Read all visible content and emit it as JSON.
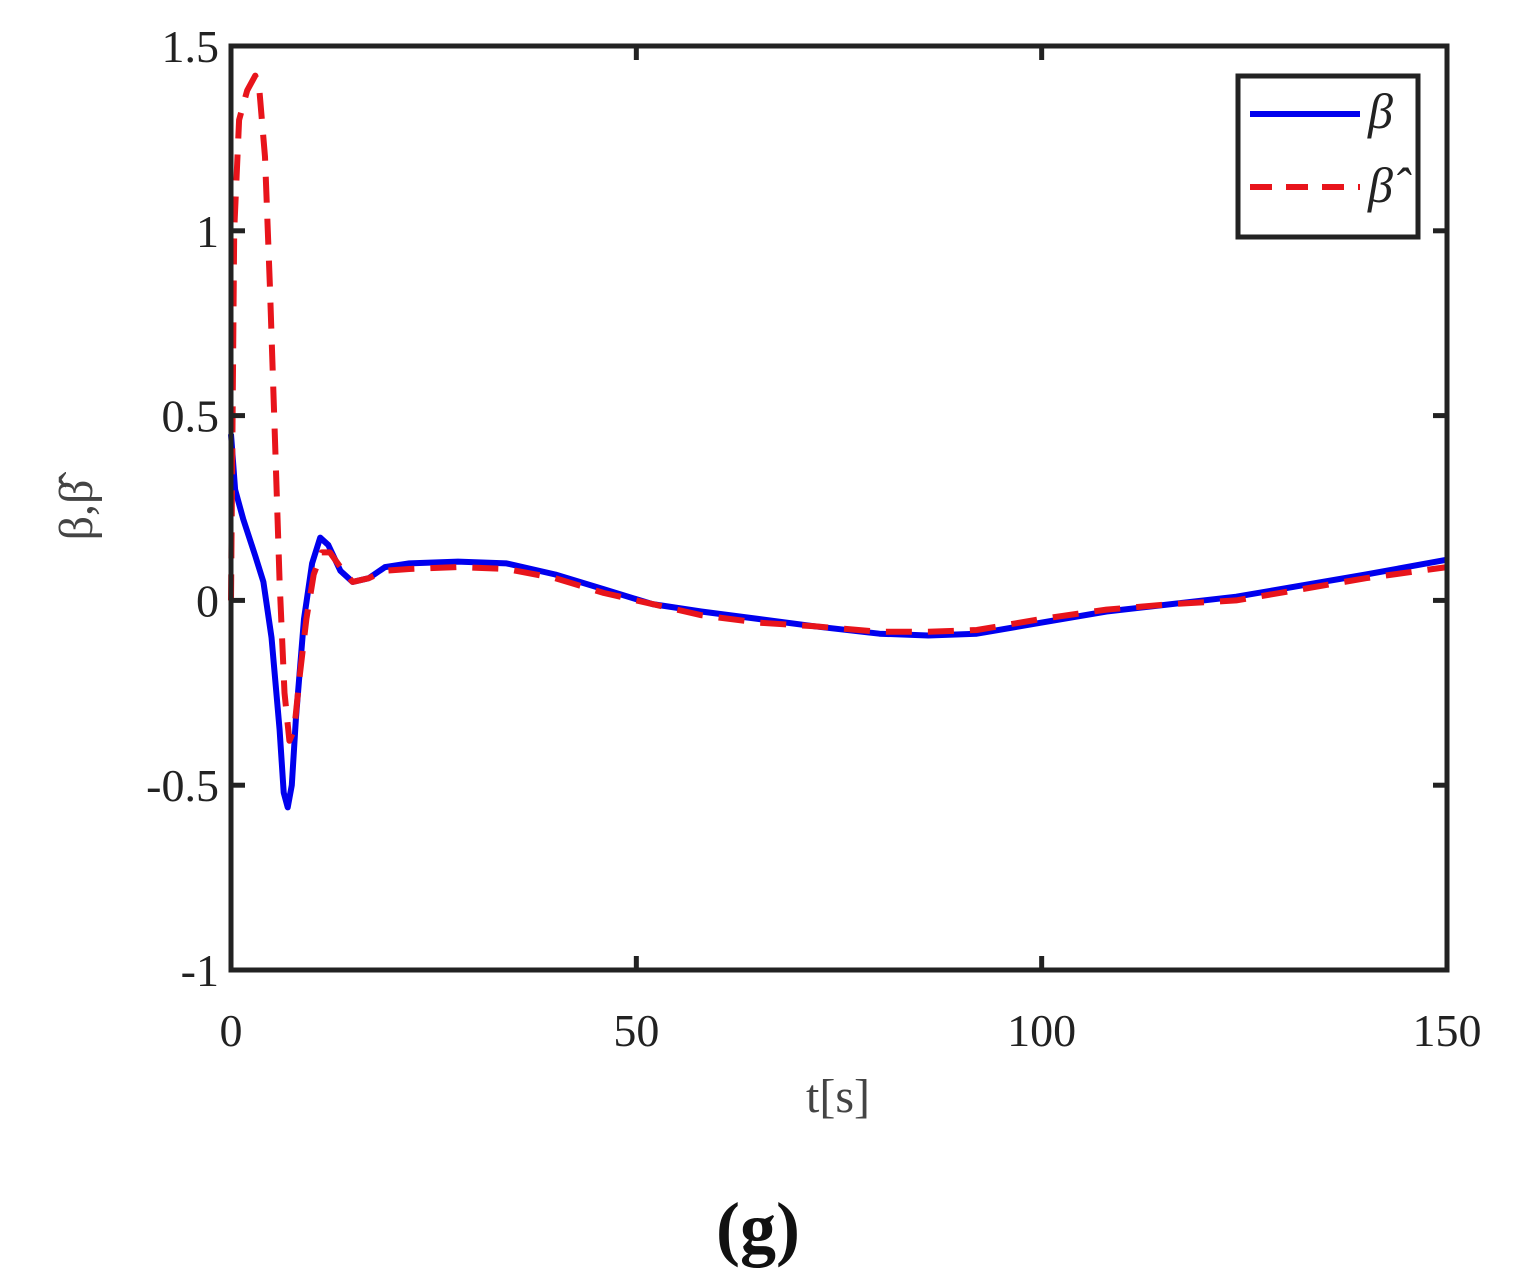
{
  "chart_data": {
    "type": "line",
    "xlabel": "t[s]",
    "ylabel": "β,β̂",
    "xlim": [
      0,
      150
    ],
    "ylim": [
      -1,
      1.5
    ],
    "xticks": [
      "0",
      "50",
      "100",
      "150"
    ],
    "yticks": [
      "-1",
      "-0.5",
      "0",
      "0.5",
      "1",
      "1.5"
    ],
    "xtick_values": [
      0,
      50,
      100,
      150
    ],
    "ytick_values": [
      -1,
      -0.5,
      0,
      0.5,
      1,
      1.5
    ],
    "grid": false,
    "legend_position": "top-right",
    "panel_label": "(g)",
    "series": [
      {
        "name": "β",
        "color": "#0000ee",
        "style": "solid",
        "points": [
          [
            0,
            0.45
          ],
          [
            0.5,
            0.3
          ],
          [
            1.5,
            0.22
          ],
          [
            3,
            0.12
          ],
          [
            4,
            0.05
          ],
          [
            5,
            -0.1
          ],
          [
            6,
            -0.35
          ],
          [
            6.5,
            -0.52
          ],
          [
            7,
            -0.56
          ],
          [
            7.5,
            -0.5
          ],
          [
            8,
            -0.32
          ],
          [
            9,
            -0.05
          ],
          [
            10,
            0.1
          ],
          [
            11,
            0.17
          ],
          [
            12,
            0.15
          ],
          [
            13.5,
            0.08
          ],
          [
            15,
            0.05
          ],
          [
            17,
            0.06
          ],
          [
            19,
            0.09
          ],
          [
            22,
            0.1
          ],
          [
            28,
            0.105
          ],
          [
            34,
            0.1
          ],
          [
            40,
            0.07
          ],
          [
            46,
            0.03
          ],
          [
            52,
            -0.01
          ],
          [
            58,
            -0.03
          ],
          [
            65,
            -0.05
          ],
          [
            72,
            -0.07
          ],
          [
            80,
            -0.09
          ],
          [
            86,
            -0.095
          ],
          [
            92,
            -0.09
          ],
          [
            100,
            -0.06
          ],
          [
            108,
            -0.03
          ],
          [
            116,
            -0.01
          ],
          [
            124,
            0.01
          ],
          [
            132,
            0.04
          ],
          [
            140,
            0.07
          ],
          [
            150,
            0.11
          ]
        ]
      },
      {
        "name": "β̂",
        "color": "#e8141b",
        "style": "dashed",
        "points": [
          [
            0,
            0
          ],
          [
            0.4,
            1.0
          ],
          [
            1,
            1.3
          ],
          [
            2,
            1.38
          ],
          [
            3,
            1.42
          ],
          [
            3.5,
            1.38
          ],
          [
            4.2,
            1.2
          ],
          [
            4.8,
            0.85
          ],
          [
            5.4,
            0.45
          ],
          [
            6,
            0.05
          ],
          [
            6.6,
            -0.25
          ],
          [
            7.2,
            -0.38
          ],
          [
            7.8,
            -0.35
          ],
          [
            8.5,
            -0.2
          ],
          [
            9.3,
            -0.05
          ],
          [
            10.2,
            0.07
          ],
          [
            11.2,
            0.13
          ],
          [
            12.2,
            0.13
          ],
          [
            13.5,
            0.09
          ],
          [
            15,
            0.05
          ],
          [
            17,
            0.06
          ],
          [
            19,
            0.08
          ],
          [
            22,
            0.085
          ],
          [
            28,
            0.09
          ],
          [
            34,
            0.085
          ],
          [
            40,
            0.06
          ],
          [
            46,
            0.02
          ],
          [
            52,
            -0.01
          ],
          [
            58,
            -0.04
          ],
          [
            65,
            -0.06
          ],
          [
            72,
            -0.07
          ],
          [
            80,
            -0.085
          ],
          [
            86,
            -0.085
          ],
          [
            92,
            -0.08
          ],
          [
            100,
            -0.05
          ],
          [
            108,
            -0.025
          ],
          [
            116,
            -0.01
          ],
          [
            124,
            0.0
          ],
          [
            132,
            0.03
          ],
          [
            140,
            0.06
          ],
          [
            150,
            0.09
          ]
        ]
      }
    ]
  }
}
